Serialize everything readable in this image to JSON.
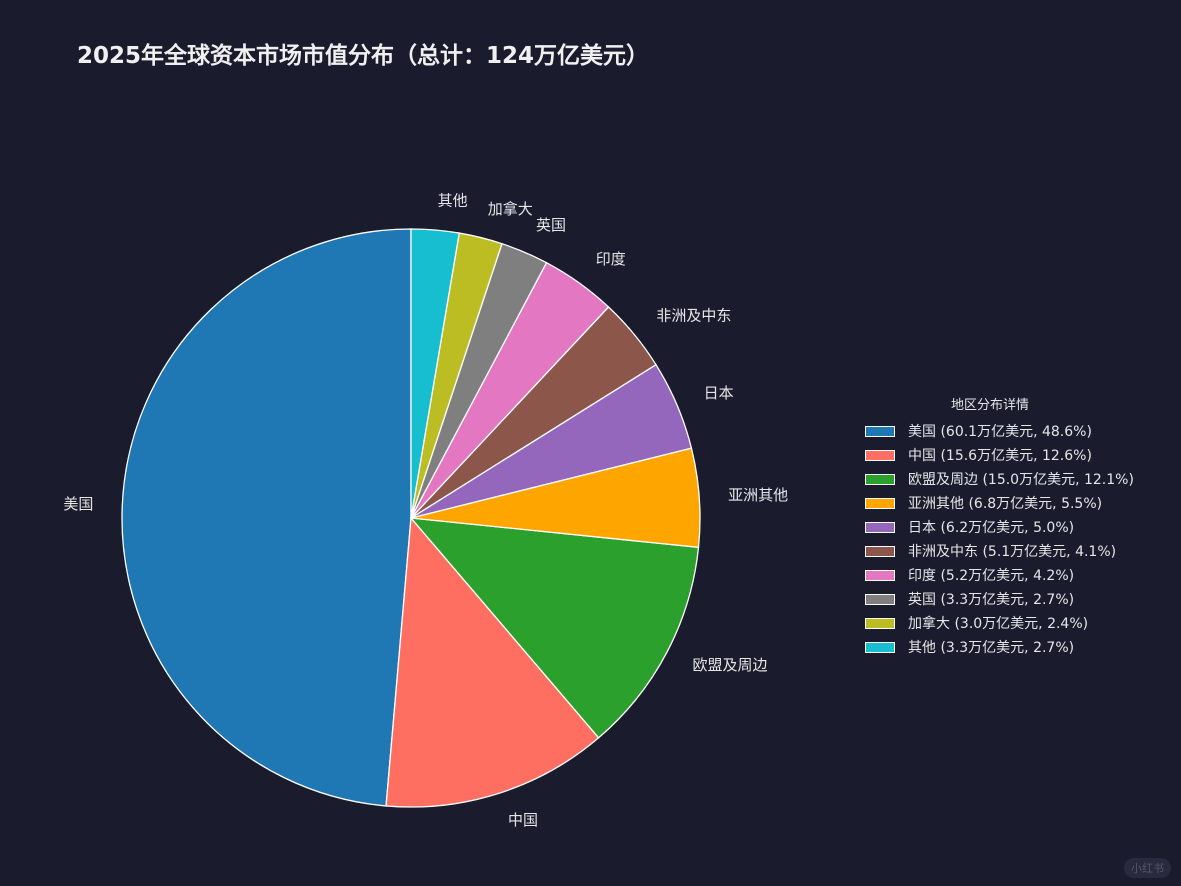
{
  "chart_data": {
    "type": "pie",
    "title": "2025年全球资本市场市值分布（总计：124万亿美元）",
    "slices": [
      {
        "label": "美国",
        "value": 60.1,
        "percent": 48.6,
        "color": "#1f77b4",
        "legend": "美国 (60.1万亿美元, 48.6%)"
      },
      {
        "label": "中国",
        "value": 15.6,
        "percent": 12.6,
        "color": "#ff6f61",
        "legend": "中国 (15.6万亿美元, 12.6%)"
      },
      {
        "label": "欧盟及周边",
        "value": 15.0,
        "percent": 12.1,
        "color": "#2ca02c",
        "legend": "欧盟及周边 (15.0万亿美元, 12.1%)"
      },
      {
        "label": "亚洲其他",
        "value": 6.8,
        "percent": 5.5,
        "color": "#ffa500",
        "legend": "亚洲其他 (6.8万亿美元, 5.5%)"
      },
      {
        "label": "日本",
        "value": 6.2,
        "percent": 5.0,
        "color": "#9467bd",
        "legend": "日本 (6.2万亿美元, 5.0%)"
      },
      {
        "label": "非洲及中东",
        "value": 5.1,
        "percent": 4.1,
        "color": "#8c564b",
        "legend": "非洲及中东 (5.1万亿美元, 4.1%)"
      },
      {
        "label": "印度",
        "value": 5.2,
        "percent": 4.2,
        "color": "#e377c2",
        "legend": "印度 (5.2万亿美元, 4.2%)"
      },
      {
        "label": "英国",
        "value": 3.3,
        "percent": 2.7,
        "color": "#7f7f7f",
        "legend": "英国 (3.3万亿美元, 2.7%)"
      },
      {
        "label": "加拿大",
        "value": 3.0,
        "percent": 2.4,
        "color": "#bcbd22",
        "legend": "加拿大 (3.0万亿美元, 2.4%)"
      },
      {
        "label": "其他",
        "value": 3.3,
        "percent": 2.7,
        "color": "#17becf",
        "legend": "其他 (3.3万亿美元, 2.7%)"
      }
    ],
    "start_angle": "12 o'clock",
    "direction": "counterclockwise for slices, legend listed in order",
    "legend_title": "地区分布详情",
    "legend_position": "right"
  },
  "watermark": "小红书"
}
